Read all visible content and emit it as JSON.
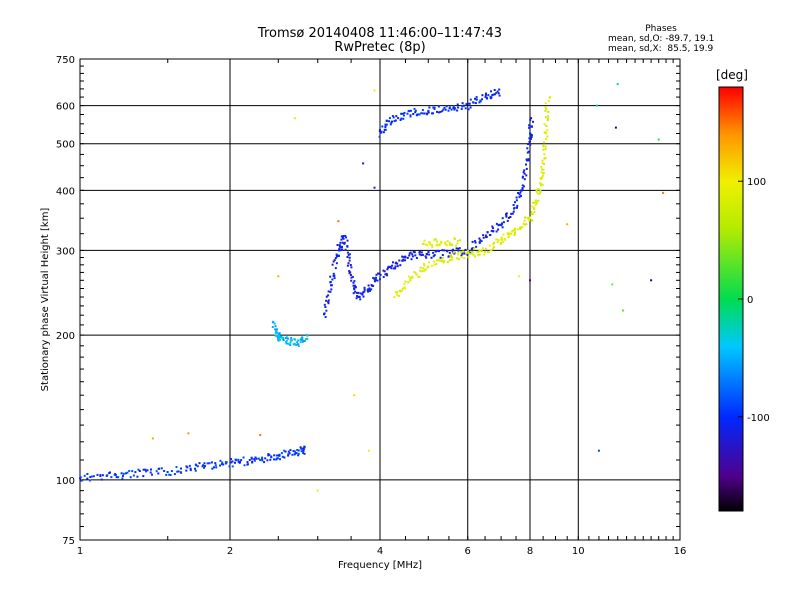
{
  "title_line1": "Tromsø 20140408 11:46:00–11:47:43",
  "title_line2": "RwPretec (8p)",
  "phase_info": {
    "heading": "Phases",
    "line_o": "mean, sd,O: -89.7, 19.1",
    "line_x": "mean, sd,X:  85.5, 19.9"
  },
  "colorbar": {
    "unit": "[deg]",
    "ticks": [
      {
        "value": 100,
        "label": "100"
      },
      {
        "value": 0,
        "label": "0"
      },
      {
        "value": -100,
        "label": "-100"
      }
    ],
    "range": [
      -180,
      180
    ]
  },
  "chart_data": {
    "type": "scatter",
    "xlabel": "Frequency [MHz]",
    "ylabel": "Stationary phase Virtual Height [km]",
    "x_scale": "log",
    "y_scale": "log",
    "xlim": [
      1,
      16
    ],
    "ylim": [
      75,
      750
    ],
    "xticks": [
      1,
      2,
      4,
      6,
      8,
      10,
      16
    ],
    "yticks": [
      75,
      100,
      200,
      300,
      400,
      500,
      600,
      750
    ],
    "grid": true,
    "color_encodes": "phase [deg]",
    "traces": [
      {
        "points": [
          [
            1.0,
            101
          ],
          [
            1.15,
            102
          ],
          [
            1.3,
            103
          ],
          [
            1.5,
            104
          ],
          [
            1.7,
            106
          ],
          [
            1.9,
            108
          ],
          [
            2.1,
            109
          ],
          [
            2.3,
            110
          ],
          [
            2.5,
            112
          ],
          [
            2.7,
            114
          ],
          [
            2.85,
            116
          ]
        ],
        "phase": -95
      },
      {
        "points": [
          [
            2.45,
            210
          ],
          [
            2.5,
            198
          ],
          [
            2.6,
            194
          ],
          [
            2.75,
            193
          ],
          [
            2.85,
            197
          ]
        ],
        "phase": -45
      },
      {
        "points": [
          [
            3.1,
            220
          ],
          [
            3.2,
            260
          ],
          [
            3.3,
            300
          ],
          [
            3.4,
            320
          ],
          [
            3.5,
            270
          ],
          [
            3.6,
            240
          ],
          [
            3.8,
            250
          ],
          [
            4.0,
            265
          ],
          [
            4.3,
            280
          ],
          [
            4.6,
            293
          ],
          [
            5.0,
            295
          ],
          [
            5.5,
            295
          ],
          [
            6.0,
            300
          ],
          [
            6.5,
            320
          ],
          [
            7.0,
            340
          ],
          [
            7.5,
            370
          ],
          [
            7.8,
            420
          ],
          [
            8.0,
            500
          ],
          [
            8.05,
            560
          ]
        ],
        "phase": -110
      },
      {
        "points": [
          [
            4.3,
            240
          ],
          [
            4.6,
            260
          ],
          [
            5.0,
            280
          ],
          [
            5.5,
            290
          ],
          [
            6.0,
            295
          ],
          [
            6.5,
            300
          ],
          [
            7.0,
            315
          ],
          [
            7.5,
            330
          ],
          [
            8.0,
            350
          ],
          [
            8.3,
            390
          ],
          [
            8.5,
            440
          ],
          [
            8.6,
            520
          ],
          [
            8.7,
            630
          ]
        ],
        "phase": 85
      },
      {
        "points": [
          [
            4.9,
            308
          ],
          [
            5.3,
            312
          ],
          [
            5.8,
            313
          ]
        ],
        "phase": 90
      },
      {
        "points": [
          [
            4.0,
            520
          ],
          [
            4.2,
            560
          ],
          [
            4.6,
            580
          ],
          [
            5.0,
            585
          ],
          [
            5.5,
            590
          ],
          [
            6.0,
            600
          ],
          [
            6.5,
            625
          ],
          [
            7.0,
            645
          ]
        ],
        "phase": -100
      }
    ],
    "scattered_points": [
      {
        "x": 1.4,
        "y": 122,
        "phase": 135
      },
      {
        "x": 1.65,
        "y": 125,
        "phase": 140
      },
      {
        "x": 2.5,
        "y": 265,
        "phase": 130
      },
      {
        "x": 2.3,
        "y": 124,
        "phase": 150
      },
      {
        "x": 3.0,
        "y": 95,
        "phase": 100
      },
      {
        "x": 3.8,
        "y": 115,
        "phase": 100
      },
      {
        "x": 3.55,
        "y": 150,
        "phase": 110
      },
      {
        "x": 3.9,
        "y": 645,
        "phase": 100
      },
      {
        "x": 3.9,
        "y": 405,
        "phase": -120
      },
      {
        "x": 3.7,
        "y": 455,
        "phase": -110
      },
      {
        "x": 3.3,
        "y": 345,
        "phase": 150
      },
      {
        "x": 2.7,
        "y": 565,
        "phase": 90
      },
      {
        "x": 7.6,
        "y": 265,
        "phase": 100
      },
      {
        "x": 8.0,
        "y": 260,
        "phase": -150
      },
      {
        "x": 9.5,
        "y": 340,
        "phase": 130
      },
      {
        "x": 11.0,
        "y": 115,
        "phase": -90
      },
      {
        "x": 10.9,
        "y": 600,
        "phase": -20
      },
      {
        "x": 11.9,
        "y": 540,
        "phase": -160
      },
      {
        "x": 12.0,
        "y": 665,
        "phase": -30
      },
      {
        "x": 12.3,
        "y": 225,
        "phase": 30
      },
      {
        "x": 11.7,
        "y": 255,
        "phase": 40
      },
      {
        "x": 14.0,
        "y": 260,
        "phase": -160
      },
      {
        "x": 14.8,
        "y": 395,
        "phase": 150
      },
      {
        "x": 14.5,
        "y": 510,
        "phase": 10
      }
    ]
  }
}
